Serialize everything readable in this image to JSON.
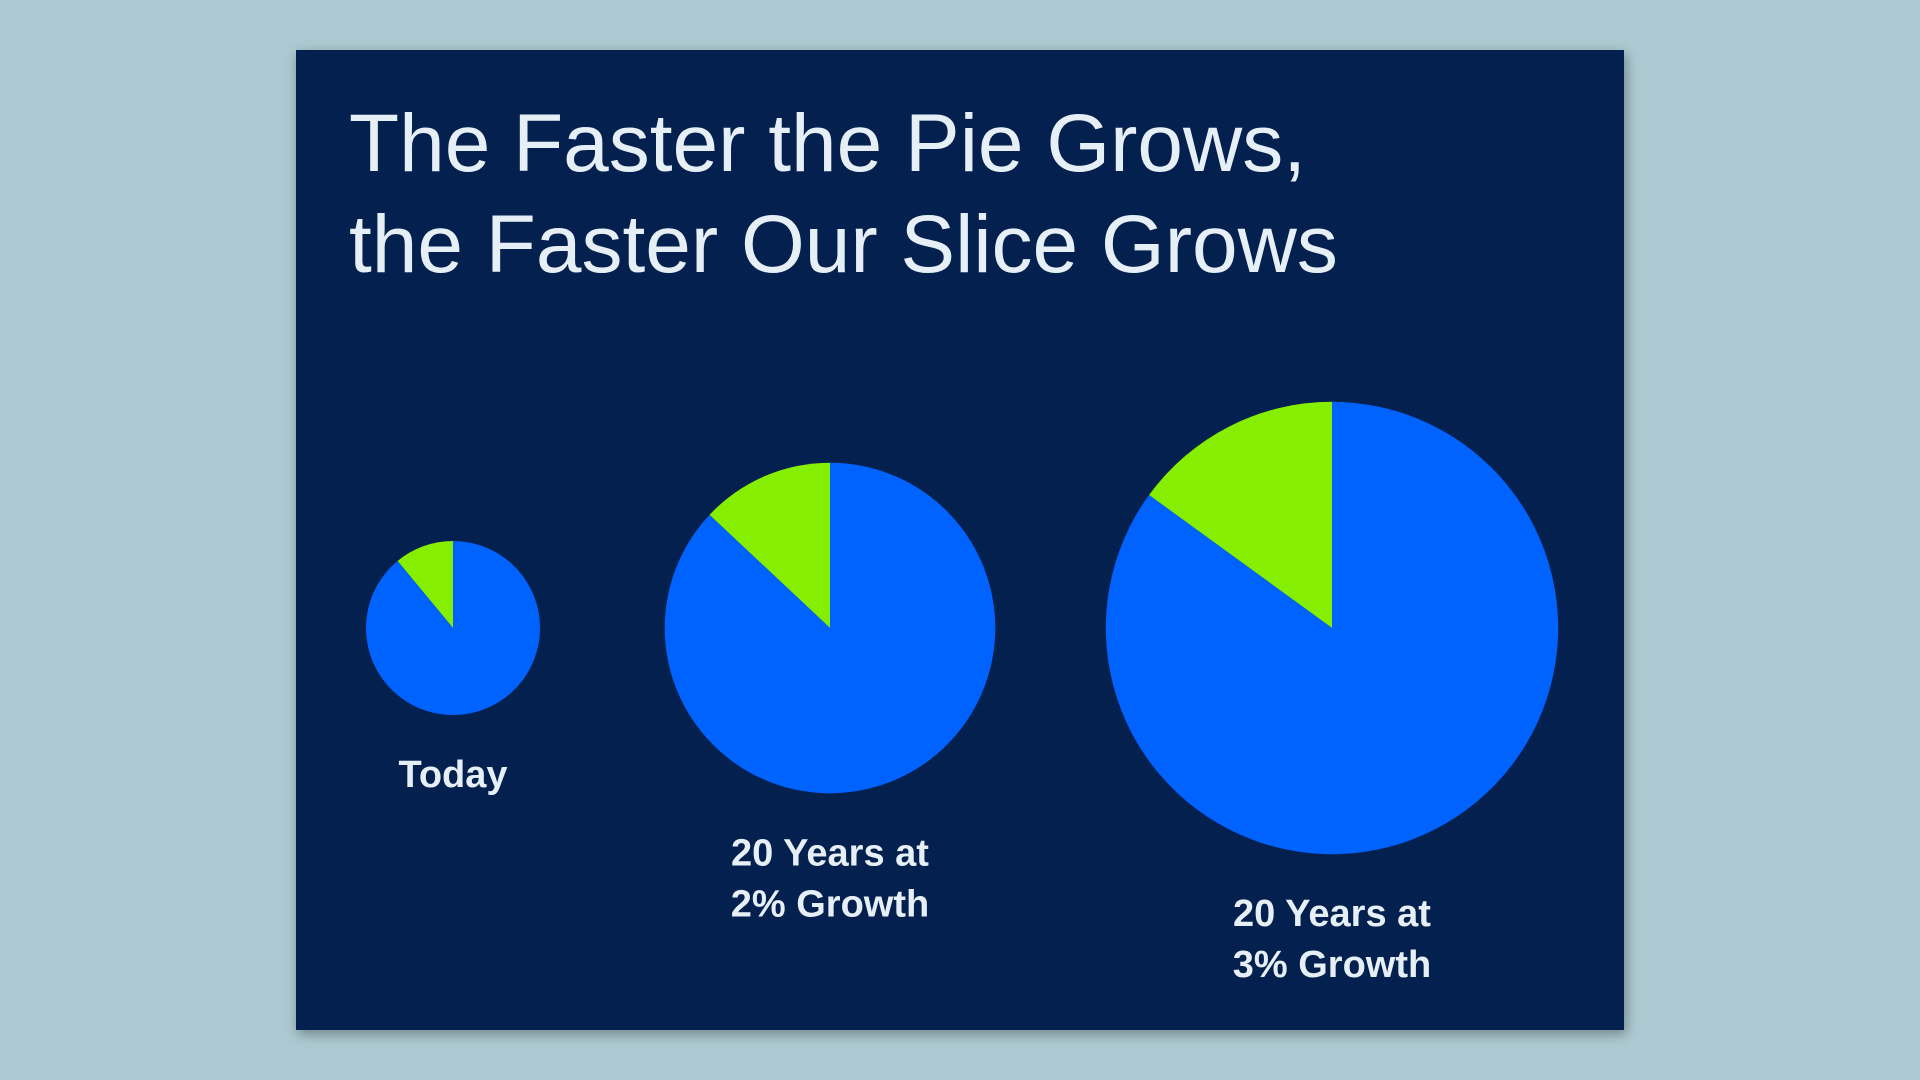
{
  "chart_data": {
    "type": "pie",
    "title": [
      "The Faster the Pie Grows,",
      "the Faster Our Slice Grows"
    ],
    "colors": [
      "#86ee00",
      "#0062ff"
    ],
    "pies": [
      {
        "label": [
          "Today"
        ],
        "size": 1,
        "values": [
          11,
          89
        ]
      },
      {
        "label": [
          "20 Years at",
          "2% Growth"
        ],
        "size": 1.9,
        "values": [
          13,
          87
        ]
      },
      {
        "label": [
          "20 Years at",
          "3% Growth"
        ],
        "size": 2.6,
        "values": [
          15,
          85
        ]
      }
    ]
  }
}
